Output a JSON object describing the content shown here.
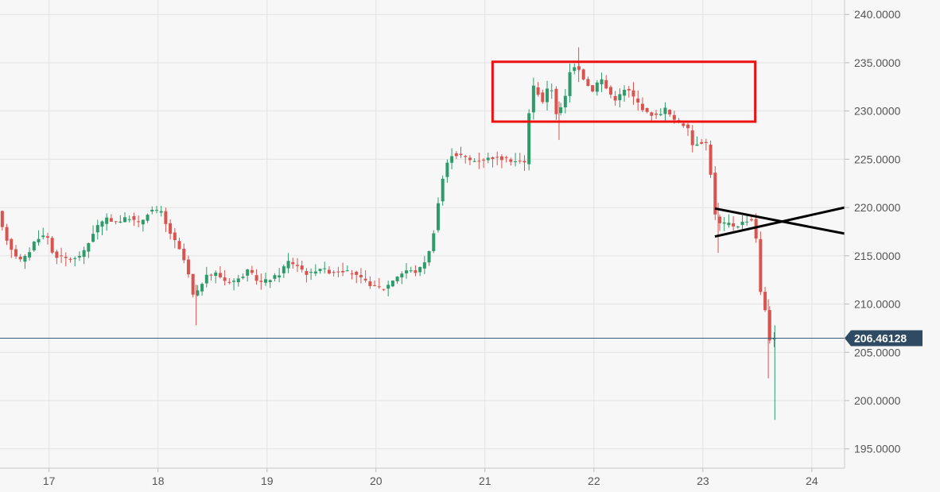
{
  "chart_data": {
    "type": "candlestick",
    "title": "",
    "xlabel": "",
    "ylabel": "",
    "ylim": [
      193.0,
      241.5
    ],
    "xlim": [
      16.55,
      24.3
    ],
    "grid": true,
    "y_ticks": [
      240,
      235,
      230,
      225,
      220,
      215,
      210,
      205,
      200,
      195
    ],
    "y_tick_labels": [
      "240.0000",
      "235.0000",
      "230.0000",
      "225.0000",
      "220.0000",
      "215.0000",
      "210.0000",
      "205.0000",
      "200.0000",
      "195.0000"
    ],
    "x_ticks": [
      17,
      18,
      19,
      20,
      21,
      22,
      23,
      24
    ],
    "x_tick_labels": [
      "17",
      "18",
      "19",
      "20",
      "21",
      "22",
      "23",
      "24"
    ],
    "current_price": 206.46128,
    "current_price_label": "206.46128",
    "colors": {
      "up": "#2e9b6a",
      "down": "#d9534f",
      "box": "#ee1111",
      "lines": "#000000",
      "price_line": "#3d5a7a",
      "price_badge": "#2f4a63",
      "grid": "#e3e3e3",
      "background": "#f7f7f7",
      "axis_text": "#555555"
    },
    "anchors": [
      {
        "x": 16.55,
        "y": 219.5
      },
      {
        "x": 16.6,
        "y": 217.5
      },
      {
        "x": 16.67,
        "y": 215.8
      },
      {
        "x": 16.75,
        "y": 214.5
      },
      {
        "x": 16.82,
        "y": 215.0
      },
      {
        "x": 16.9,
        "y": 216.8
      },
      {
        "x": 17.0,
        "y": 217.2
      },
      {
        "x": 17.06,
        "y": 215.0
      },
      {
        "x": 17.15,
        "y": 214.8
      },
      {
        "x": 17.25,
        "y": 214.6
      },
      {
        "x": 17.35,
        "y": 215.5
      },
      {
        "x": 17.45,
        "y": 218.0
      },
      {
        "x": 17.55,
        "y": 218.8
      },
      {
        "x": 17.65,
        "y": 218.5
      },
      {
        "x": 17.75,
        "y": 219.0
      },
      {
        "x": 17.85,
        "y": 218.3
      },
      {
        "x": 17.95,
        "y": 219.8
      },
      {
        "x": 18.05,
        "y": 219.5
      },
      {
        "x": 18.1,
        "y": 218.0
      },
      {
        "x": 18.2,
        "y": 216.0
      },
      {
        "x": 18.28,
        "y": 214.0
      },
      {
        "x": 18.35,
        "y": 210.5
      },
      {
        "x": 18.45,
        "y": 212.8
      },
      {
        "x": 18.55,
        "y": 213.2
      },
      {
        "x": 18.65,
        "y": 212.3
      },
      {
        "x": 18.75,
        "y": 212.5
      },
      {
        "x": 18.85,
        "y": 213.5
      },
      {
        "x": 18.95,
        "y": 212.2
      },
      {
        "x": 19.05,
        "y": 212.6
      },
      {
        "x": 19.15,
        "y": 213.2
      },
      {
        "x": 19.2,
        "y": 214.5
      },
      {
        "x": 19.3,
        "y": 214.0
      },
      {
        "x": 19.4,
        "y": 213.0
      },
      {
        "x": 19.5,
        "y": 213.8
      },
      {
        "x": 19.6,
        "y": 213.3
      },
      {
        "x": 19.7,
        "y": 213.5
      },
      {
        "x": 19.8,
        "y": 213.2
      },
      {
        "x": 19.9,
        "y": 212.5
      },
      {
        "x": 20.0,
        "y": 211.8
      },
      {
        "x": 20.1,
        "y": 211.6
      },
      {
        "x": 20.2,
        "y": 212.8
      },
      {
        "x": 20.3,
        "y": 213.5
      },
      {
        "x": 20.4,
        "y": 213.3
      },
      {
        "x": 20.5,
        "y": 215.0
      },
      {
        "x": 20.55,
        "y": 217.5
      },
      {
        "x": 20.62,
        "y": 222.5
      },
      {
        "x": 20.7,
        "y": 225.5
      },
      {
        "x": 20.8,
        "y": 225.4
      },
      {
        "x": 20.9,
        "y": 224.8
      },
      {
        "x": 21.0,
        "y": 225.0
      },
      {
        "x": 21.1,
        "y": 225.2
      },
      {
        "x": 21.2,
        "y": 225.0
      },
      {
        "x": 21.3,
        "y": 224.8
      },
      {
        "x": 21.4,
        "y": 224.6
      },
      {
        "x": 21.44,
        "y": 233.0
      },
      {
        "x": 21.5,
        "y": 232.0
      },
      {
        "x": 21.55,
        "y": 231.0
      },
      {
        "x": 21.62,
        "y": 233.0
      },
      {
        "x": 21.68,
        "y": 229.5
      },
      {
        "x": 21.75,
        "y": 231.0
      },
      {
        "x": 21.8,
        "y": 234.0
      },
      {
        "x": 21.86,
        "y": 235.0
      },
      {
        "x": 21.92,
        "y": 233.5
      },
      {
        "x": 22.0,
        "y": 232.0
      },
      {
        "x": 22.08,
        "y": 233.5
      },
      {
        "x": 22.15,
        "y": 232.0
      },
      {
        "x": 22.22,
        "y": 231.2
      },
      {
        "x": 22.32,
        "y": 232.4
      },
      {
        "x": 22.4,
        "y": 231.2
      },
      {
        "x": 22.5,
        "y": 229.8
      },
      {
        "x": 22.6,
        "y": 229.5
      },
      {
        "x": 22.68,
        "y": 230.3
      },
      {
        "x": 22.75,
        "y": 229.0
      },
      {
        "x": 22.82,
        "y": 228.8
      },
      {
        "x": 22.88,
        "y": 228.2
      },
      {
        "x": 22.92,
        "y": 226.5
      },
      {
        "x": 23.0,
        "y": 226.8
      },
      {
        "x": 23.07,
        "y": 226.6
      },
      {
        "x": 23.12,
        "y": 219.5
      },
      {
        "x": 23.18,
        "y": 218.2
      },
      {
        "x": 23.25,
        "y": 218.4
      },
      {
        "x": 23.32,
        "y": 218.0
      },
      {
        "x": 23.4,
        "y": 218.6
      },
      {
        "x": 23.46,
        "y": 218.8
      },
      {
        "x": 23.5,
        "y": 218.3
      },
      {
        "x": 23.54,
        "y": 211.5
      },
      {
        "x": 23.58,
        "y": 210.2
      },
      {
        "x": 23.62,
        "y": 207.5
      },
      {
        "x": 23.64,
        "y": 205.8
      },
      {
        "x": 23.66,
        "y": 206.46
      }
    ],
    "annotations": [
      {
        "type": "rectangle",
        "x0": 21.07,
        "x1": 23.48,
        "y0": 228.9,
        "y1": 235.1,
        "color": "#ee1111"
      },
      {
        "type": "line",
        "x0": 23.11,
        "y0": 219.9,
        "x1": 24.3,
        "y1": 217.3,
        "color": "#000000"
      },
      {
        "type": "line",
        "x0": 23.11,
        "y0": 217.0,
        "x1": 24.3,
        "y1": 220.0,
        "color": "#000000"
      }
    ]
  }
}
